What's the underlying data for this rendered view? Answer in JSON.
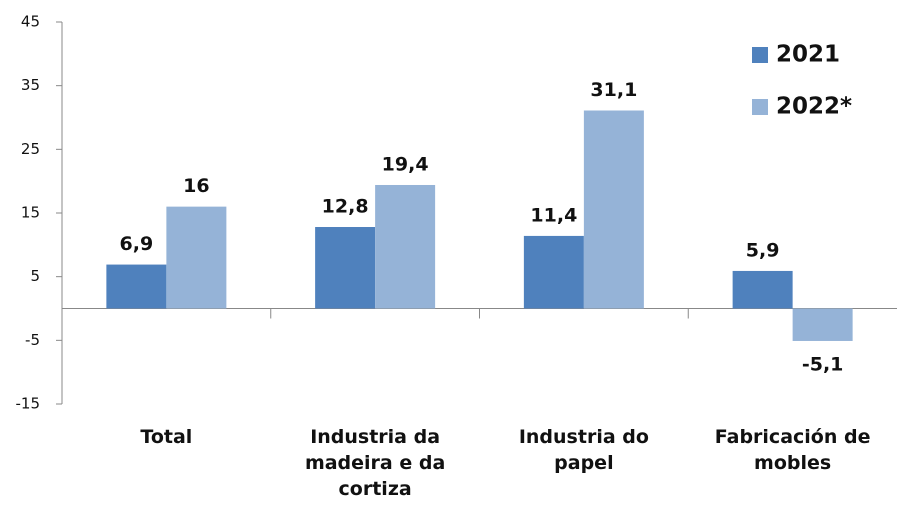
{
  "chart_data": {
    "type": "bar",
    "categories": [
      "Total",
      "Industria da madeira e da cortiza",
      "Industria do papel",
      "Fabricación de mobles"
    ],
    "series": [
      {
        "name": "2021",
        "color": "#4f81bd",
        "values": [
          6.9,
          12.8,
          11.4,
          5.9
        ],
        "value_labels": [
          "6,9",
          "12,8",
          "11,4",
          "5,9"
        ]
      },
      {
        "name": "2022*",
        "color": "#95b3d7",
        "values": [
          16,
          19.4,
          31.1,
          -5.1
        ],
        "value_labels": [
          "16",
          "19,4",
          "31,1",
          "-5,1"
        ]
      }
    ],
    "ylim": [
      -15,
      45
    ],
    "yticks": [
      -15,
      -5,
      5,
      15,
      25,
      35,
      45
    ],
    "grid": false,
    "legend": "top-right"
  }
}
